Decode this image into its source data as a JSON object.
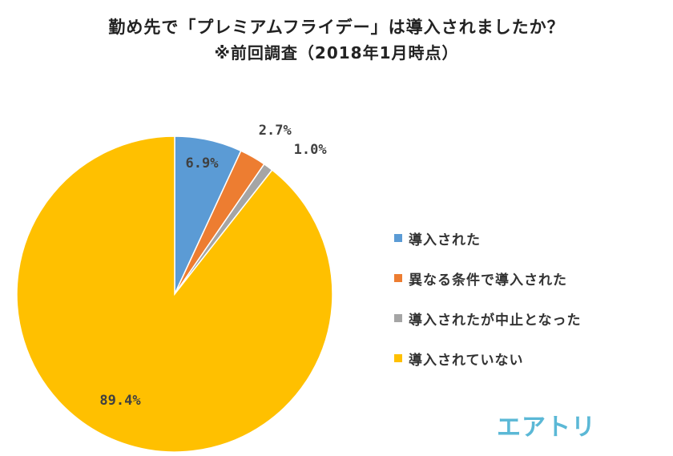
{
  "title": {
    "line1": "勤め先で「プレミアムフライデー」は導入されましたか？",
    "line2": "※前回調査（2018年1月時点）"
  },
  "chart_data": {
    "type": "pie",
    "slices": [
      {
        "label": "導入された",
        "value": 6.9,
        "value_label": "6.9%",
        "color": "#5B9BD5"
      },
      {
        "label": "異なる条件で導入された",
        "value": 2.7,
        "value_label": "2.7%",
        "color": "#ED7D31"
      },
      {
        "label": "導入されたが中止となった",
        "value": 1.0,
        "value_label": "1.0%",
        "color": "#A5A5A5"
      },
      {
        "label": "導入されていない",
        "value": 89.4,
        "value_label": "89.4%",
        "color": "#FFC000"
      }
    ],
    "legend_position": "right"
  },
  "logo": {
    "text": "エアトリ",
    "color": "#5BB8D6"
  }
}
